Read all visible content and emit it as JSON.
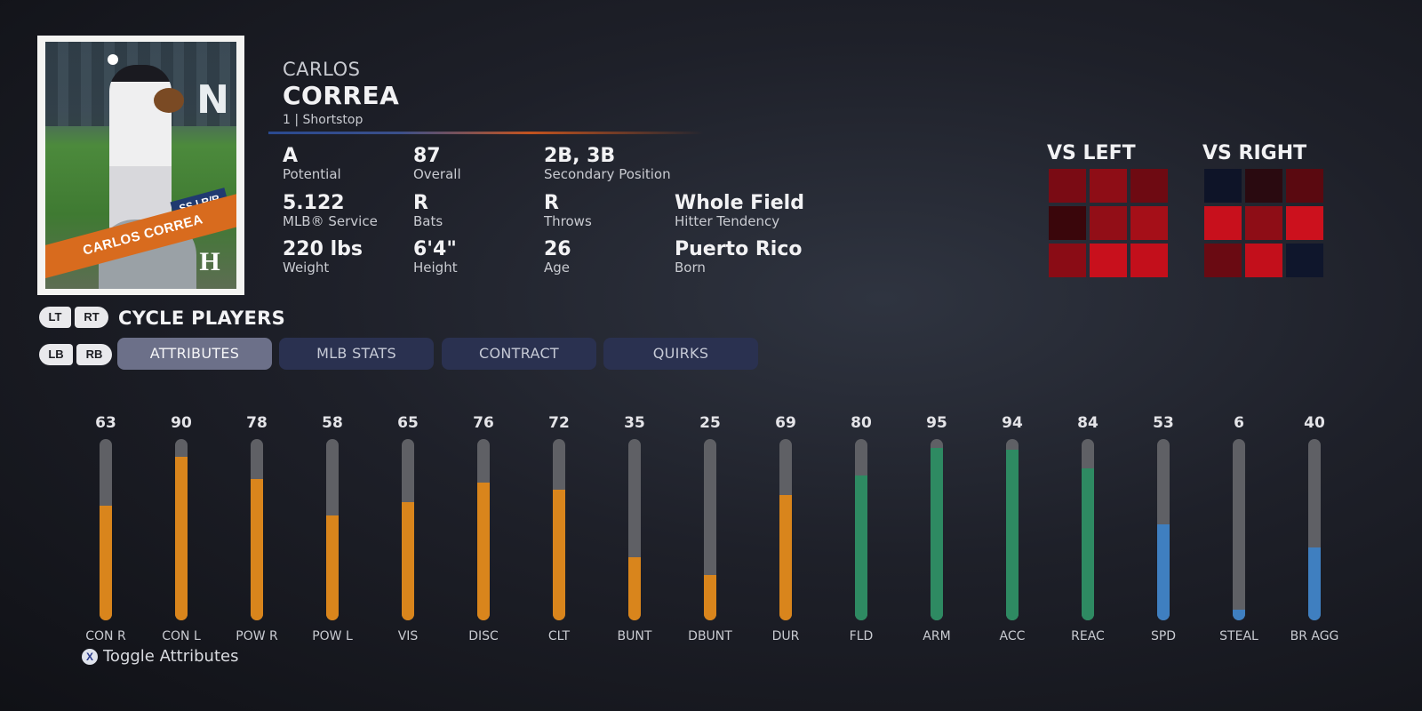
{
  "card": {
    "banner_name": "CARLOS CORREA",
    "position_bats_throws": "SS | R/R",
    "logo": "H"
  },
  "player": {
    "first_name": "CARLOS",
    "last_name": "CORREA",
    "number_position": "1 | Shortstop"
  },
  "info": {
    "potential": {
      "value": "A",
      "label": "Potential"
    },
    "overall": {
      "value": "87",
      "label": "Overall"
    },
    "secondary_position": {
      "value": "2B, 3B",
      "label": "Secondary Position"
    },
    "mlb_service": {
      "value": "5.122",
      "label": "MLB® Service"
    },
    "bats": {
      "value": "R",
      "label": "Bats"
    },
    "throws": {
      "value": "R",
      "label": "Throws"
    },
    "hitter_tendency": {
      "value": "Whole Field",
      "label": "Hitter Tendency"
    },
    "weight": {
      "value": "220 lbs",
      "label": "Weight"
    },
    "height": {
      "value": "6'4\"",
      "label": "Height"
    },
    "age": {
      "value": "26",
      "label": "Age"
    },
    "born": {
      "value": "Puerto Rico",
      "label": "Born"
    }
  },
  "hot_zones": {
    "vs_left": {
      "title": "VS LEFT",
      "cells": [
        "#7a0b14",
        "#8e0d16",
        "#6e0a12",
        "#3a060b",
        "#920e17",
        "#a50f18",
        "#8a0c15",
        "#c8101c",
        "#c30f1b"
      ]
    },
    "vs_right": {
      "title": "VS RIGHT",
      "cells": [
        "#0e1428",
        "#2a0a10",
        "#5a0910",
        "#c8101c",
        "#8e0d16",
        "#cc111d",
        "#6a0a12",
        "#c30f1b",
        "#0f162c"
      ]
    }
  },
  "cycle": {
    "lt": "LT",
    "rt": "RT",
    "label": "CYCLE PLAYERS",
    "lb": "LB",
    "rb": "RB"
  },
  "tabs": [
    {
      "label": "ATTRIBUTES",
      "active": true
    },
    {
      "label": "MLB STATS",
      "active": false
    },
    {
      "label": "CONTRACT",
      "active": false
    },
    {
      "label": "QUIRKS",
      "active": false
    }
  ],
  "colors": {
    "hitting": "#d9851c",
    "fielding": "#2e8a62",
    "running": "#3f7fc0",
    "track": "#5f6065"
  },
  "attributes": [
    {
      "label": "CON R",
      "value": 63,
      "group": "hitting"
    },
    {
      "label": "CON L",
      "value": 90,
      "group": "hitting"
    },
    {
      "label": "POW R",
      "value": 78,
      "group": "hitting"
    },
    {
      "label": "POW L",
      "value": 58,
      "group": "hitting"
    },
    {
      "label": "VIS",
      "value": 65,
      "group": "hitting"
    },
    {
      "label": "DISC",
      "value": 76,
      "group": "hitting"
    },
    {
      "label": "CLT",
      "value": 72,
      "group": "hitting"
    },
    {
      "label": "BUNT",
      "value": 35,
      "group": "hitting"
    },
    {
      "label": "DBUNT",
      "value": 25,
      "group": "hitting"
    },
    {
      "label": "DUR",
      "value": 69,
      "group": "hitting"
    },
    {
      "label": "FLD",
      "value": 80,
      "group": "fielding"
    },
    {
      "label": "ARM",
      "value": 95,
      "group": "fielding"
    },
    {
      "label": "ACC",
      "value": 94,
      "group": "fielding"
    },
    {
      "label": "REAC",
      "value": 84,
      "group": "fielding"
    },
    {
      "label": "SPD",
      "value": 53,
      "group": "running"
    },
    {
      "label": "STEAL",
      "value": 6,
      "group": "running"
    },
    {
      "label": "BR AGG",
      "value": 40,
      "group": "running"
    }
  ],
  "footer": {
    "button_glyph": "X",
    "toggle_label": "Toggle Attributes"
  }
}
